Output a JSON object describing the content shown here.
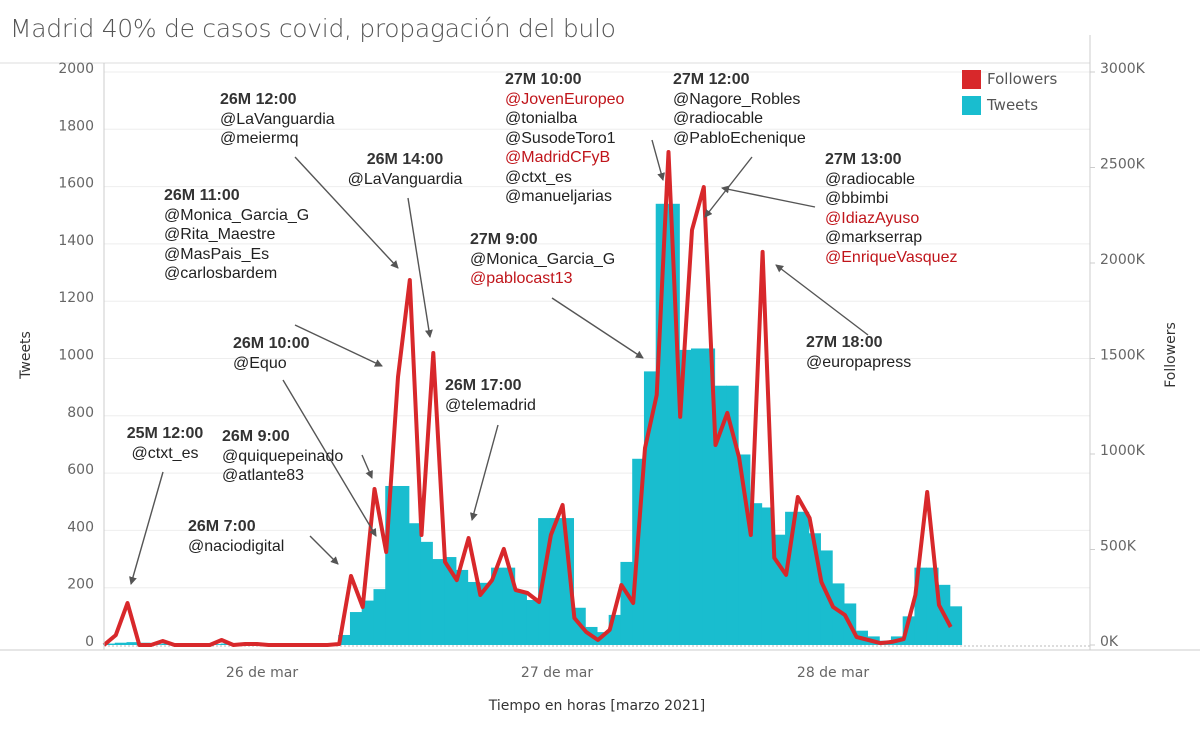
{
  "title": "Madrid 40% de casos covid, propagación del bulo",
  "legend": [
    {
      "label": "Followers",
      "color": "#d8282b"
    },
    {
      "label": "Tweets",
      "color": "#19bdcf"
    }
  ],
  "chart_data": {
    "type": "bar+line",
    "title": "Madrid 40% de casos covid, propagación del bulo",
    "xlabel": "Tiempo en horas [marzo 2021]",
    "ylabel": "Tweets",
    "y2label": "Followers",
    "ylim": [
      0,
      2000
    ],
    "y2lim": [
      0,
      3000
    ],
    "yticks": [
      "0",
      "200",
      "400",
      "600",
      "800",
      "1000",
      "1200",
      "1400",
      "1600",
      "1800",
      "2000"
    ],
    "y2ticks": [
      "0K",
      "500K",
      "1000K",
      "1500K",
      "2000K",
      "2500K",
      "3000K"
    ],
    "xticks": [
      "26 de mar",
      "27 de mar",
      "28 de mar"
    ],
    "x_step": "1 hour",
    "grid": true,
    "legend_position": "top-right",
    "series": [
      {
        "name": "Tweets",
        "type": "bar",
        "axis": "left",
        "color": "#19bdcf",
        "values": [
          5,
          8,
          10,
          8,
          3,
          5,
          3,
          3,
          3,
          3,
          5,
          3,
          3,
          3,
          2,
          2,
          2,
          2,
          2,
          2,
          35,
          115,
          155,
          195,
          555,
          555,
          425,
          360,
          300,
          307,
          262,
          220,
          217,
          270,
          270,
          185,
          157,
          443,
          443,
          443,
          130,
          63,
          45,
          105,
          290,
          650,
          955,
          1540,
          1540,
          1030,
          1035,
          1035,
          905,
          905,
          665,
          495,
          480,
          385,
          465,
          465,
          390,
          330,
          215,
          145,
          50,
          30,
          15,
          30,
          100,
          270,
          270,
          210,
          135
        ]
      },
      {
        "name": "Followers",
        "type": "line",
        "axis": "right",
        "unit": "K",
        "color": "#d8282b",
        "values": [
          0,
          52,
          220,
          0,
          0,
          21,
          0,
          0,
          0,
          0,
          26,
          0,
          5,
          5,
          0,
          0,
          0,
          0,
          0,
          0,
          5,
          361,
          199,
          817,
          487,
          1403,
          1911,
          576,
          1529,
          435,
          340,
          560,
          262,
          340,
          503,
          288,
          272,
          225,
          576,
          733,
          141,
          68,
          26,
          79,
          314,
          220,
          1031,
          1309,
          2581,
          1194,
          2173,
          2398,
          1047,
          1215,
          984,
          576,
          2058,
          456,
          367,
          775,
          665,
          330,
          199,
          157,
          42,
          26,
          10,
          16,
          31,
          262,
          801,
          209,
          94
        ]
      }
    ],
    "annotations": [
      {
        "time": "25M 12:00",
        "accounts": [
          {
            "name": "@ctxt_es"
          }
        ]
      },
      {
        "time": "26M 7:00",
        "accounts": [
          {
            "name": "@naciodigital"
          }
        ]
      },
      {
        "time": "26M 9:00",
        "accounts": [
          {
            "name": "@quiquepeinado"
          },
          {
            "name": "@atlante83"
          }
        ]
      },
      {
        "time": "26M 10:00",
        "accounts": [
          {
            "name": "@Equo"
          }
        ]
      },
      {
        "time": "26M 11:00",
        "accounts": [
          {
            "name": "@Monica_Garcia_G"
          },
          {
            "name": "@Rita_Maestre"
          },
          {
            "name": "@MasPais_Es"
          },
          {
            "name": "@carlosbardem"
          }
        ]
      },
      {
        "time": "26M 12:00",
        "accounts": [
          {
            "name": "@LaVanguardia"
          },
          {
            "name": "@meiermq"
          }
        ]
      },
      {
        "time": "26M 14:00",
        "accounts": [
          {
            "name": "@LaVanguardia"
          }
        ]
      },
      {
        "time": "26M 17:00",
        "accounts": [
          {
            "name": "@telemadrid"
          }
        ]
      },
      {
        "time": "27M 9:00",
        "accounts": [
          {
            "name": "@Monica_Garcia_G"
          },
          {
            "name": "@pablocast13",
            "highlight": true
          }
        ]
      },
      {
        "time": "27M 10:00",
        "accounts": [
          {
            "name": "@JovenEuropeo",
            "highlight": true
          },
          {
            "name": "@tonialba"
          },
          {
            "name": "@SusodeToro1"
          },
          {
            "name": "@MadridCFyB",
            "highlight": true
          },
          {
            "name": "@ctxt_es"
          },
          {
            "name": "@manueljarias"
          }
        ]
      },
      {
        "time": "27M 12:00",
        "accounts": [
          {
            "name": "@Nagore_Robles"
          },
          {
            "name": "@radiocable"
          },
          {
            "name": "@PabloEchenique"
          }
        ]
      },
      {
        "time": "27M 13:00",
        "accounts": [
          {
            "name": "@radiocable"
          },
          {
            "name": "@bbimbi"
          },
          {
            "name": "@IdiazAyuso",
            "highlight": true
          },
          {
            "name": "@markserrap"
          },
          {
            "name": "@EnriqueVasquez",
            "highlight": true
          }
        ]
      },
      {
        "time": "27M 18:00",
        "accounts": [
          {
            "name": "@europapress"
          }
        ]
      }
    ]
  }
}
